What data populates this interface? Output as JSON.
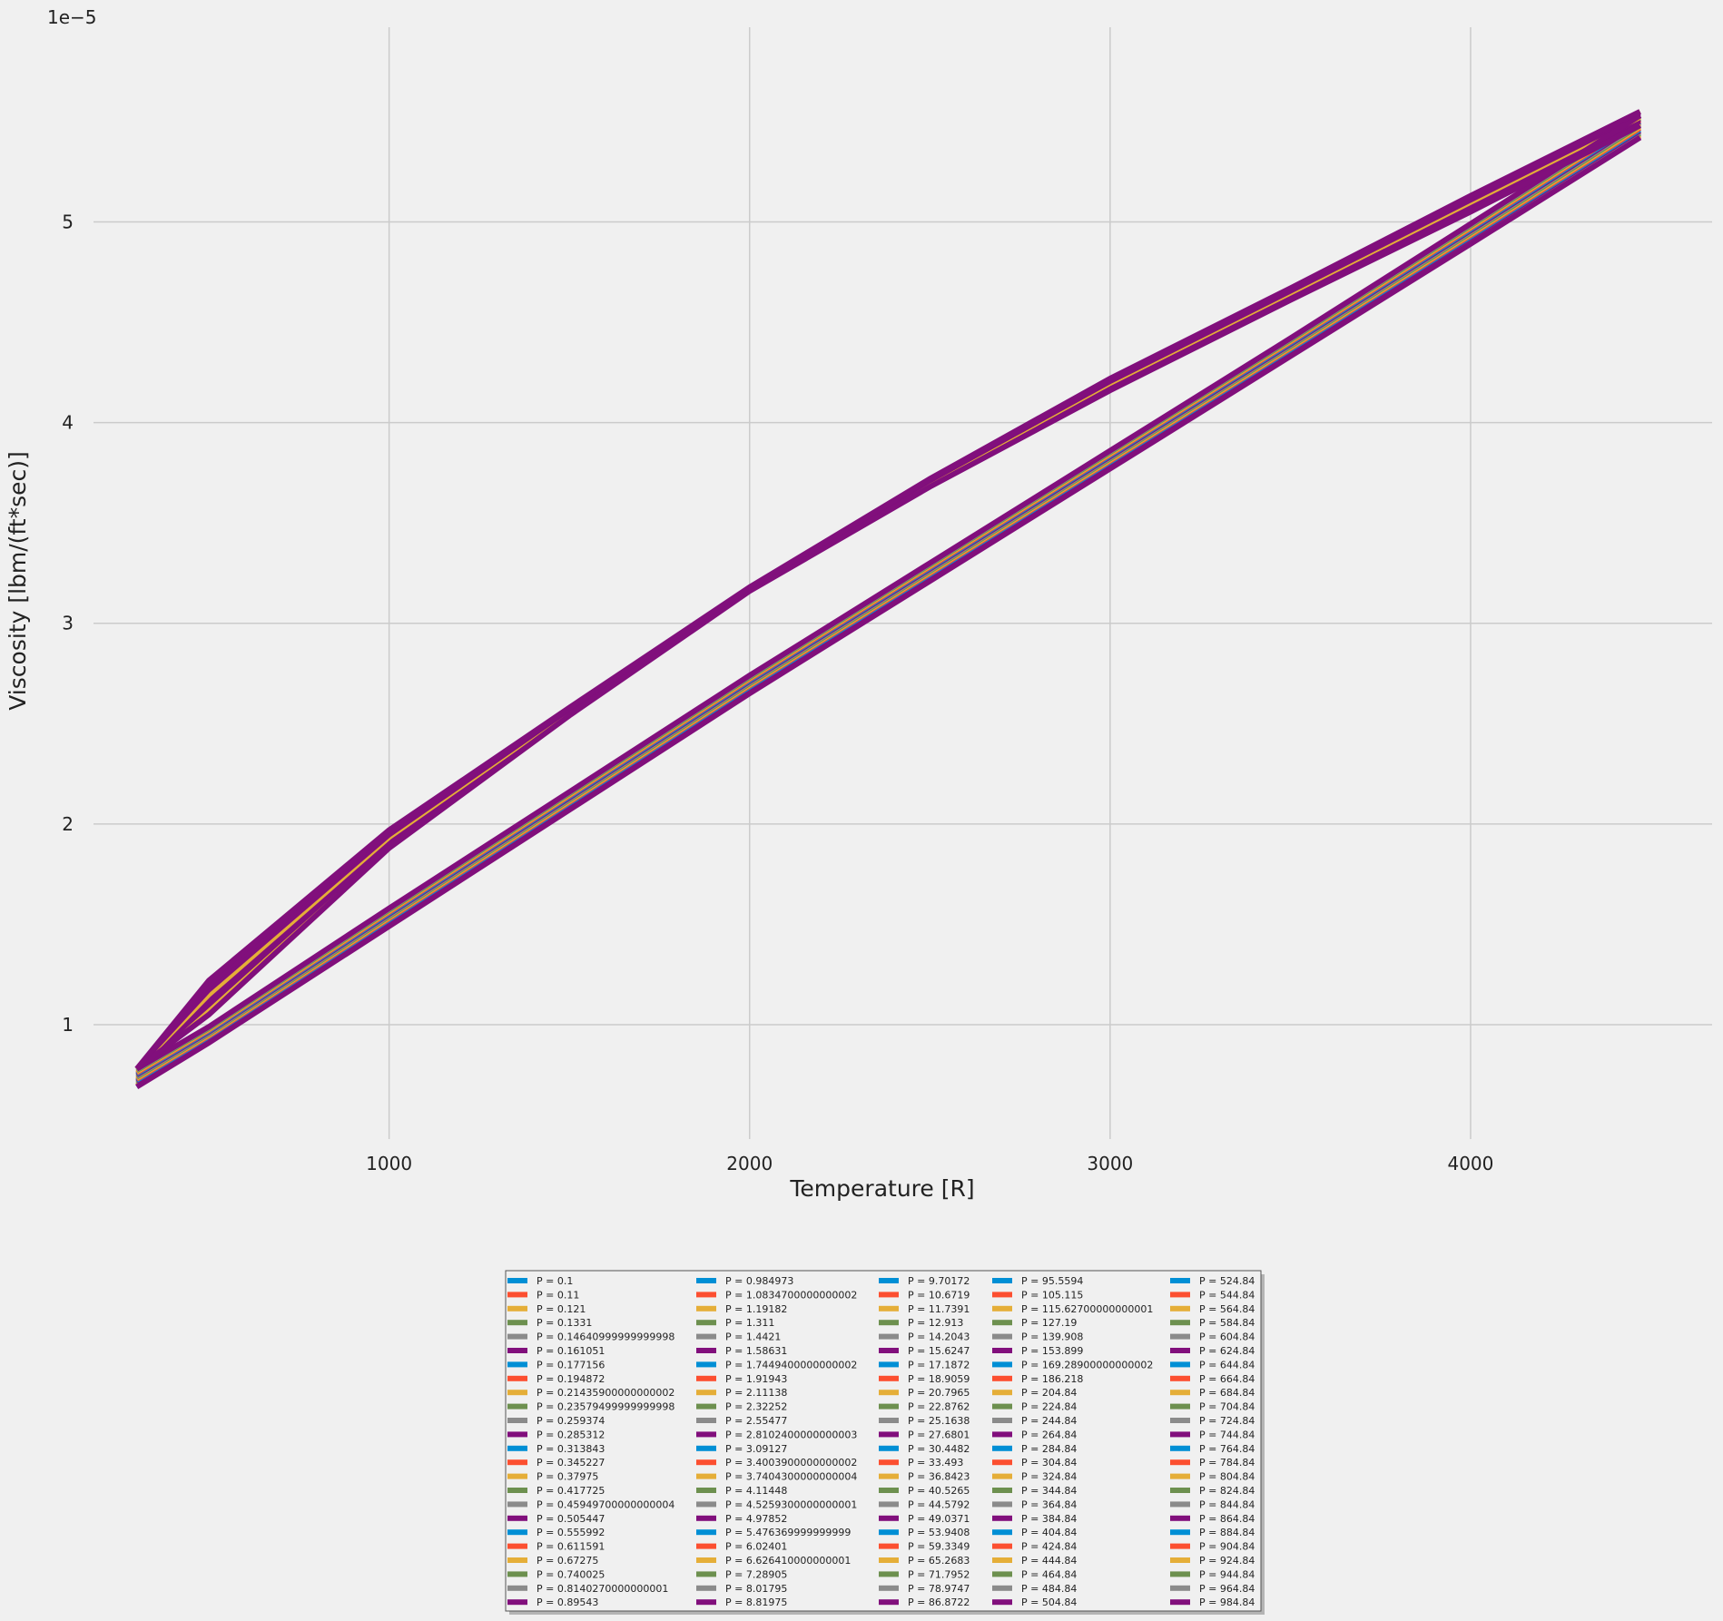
{
  "chart_data": {
    "type": "line",
    "xlabel": "Temperature [R]",
    "ylabel": "Viscosity [lbm/(ft*sec)]",
    "y_offset_label": "1e−5",
    "xlim": [
      180,
      4670
    ],
    "ylim": [
      0.43,
      5.97
    ],
    "x_ticks": [
      1000,
      2000,
      3000,
      4000
    ],
    "x_tick_labels": [
      "1000",
      "2000",
      "3000",
      "4000"
    ],
    "y_ticks": [
      1,
      2,
      3,
      4,
      5
    ],
    "y_tick_labels": [
      "1",
      "2",
      "3",
      "4",
      "5"
    ],
    "grid": true,
    "legend_position": "below plot, center",
    "legend_columns": 5,
    "colors": [
      "#008fd5",
      "#fc4f30",
      "#e5ae38",
      "#6d904f",
      "#8b8b8b",
      "#810f7c"
    ],
    "note_y_units": "y values are in units of 1e-5",
    "curve_shape": {
      "x": [
        300,
        500,
        1000,
        1500,
        2000,
        2500,
        3000,
        3500,
        4000,
        4470
      ],
      "high_pressure_upper": [
        0.78,
        1.22,
        1.97,
        2.58,
        3.18,
        3.72,
        4.22,
        4.67,
        5.13,
        5.55
      ],
      "high_pressure_lower": [
        0.78,
        1.05,
        1.88,
        2.54,
        3.16,
        3.68,
        4.16,
        4.61,
        5.05,
        5.48
      ],
      "low_pressure_upper": [
        0.78,
        0.99,
        1.58,
        2.16,
        2.74,
        3.3,
        3.86,
        4.42,
        4.99,
        5.53
      ],
      "low_pressure_lower": [
        0.69,
        0.91,
        1.49,
        2.07,
        2.65,
        3.21,
        3.77,
        4.33,
        4.89,
        5.42
      ]
    },
    "series_names": [
      "P = 0.1",
      "P = 0.11",
      "P = 0.121",
      "P = 0.1331",
      "P = 0.14640999999999998",
      "P = 0.161051",
      "P = 0.177156",
      "P = 0.194872",
      "P = 0.21435900000000002",
      "P = 0.23579499999999998",
      "P = 0.259374",
      "P = 0.285312",
      "P = 0.313843",
      "P = 0.345227",
      "P = 0.37975",
      "P = 0.417725",
      "P = 0.45949700000000004",
      "P = 0.505447",
      "P = 0.555992",
      "P = 0.611591",
      "P = 0.67275",
      "P = 0.740025",
      "P = 0.8140270000000001",
      "P = 0.89543",
      "P = 0.984973",
      "P = 1.0834700000000002",
      "P = 1.19182",
      "P = 1.311",
      "P = 1.4421",
      "P = 1.58631",
      "P = 1.7449400000000002",
      "P = 1.91943",
      "P = 2.11138",
      "P = 2.32252",
      "P = 2.55477",
      "P = 2.8102400000000003",
      "P = 3.09127",
      "P = 3.4003900000000002",
      "P = 3.7404300000000004",
      "P = 4.11448",
      "P = 4.5259300000000001",
      "P = 4.97852",
      "P = 5.476369999999999",
      "P = 6.02401",
      "P = 6.626410000000001",
      "P = 7.28905",
      "P = 8.01795",
      "P = 8.81975",
      "P = 9.70172",
      "P = 10.6719",
      "P = 11.7391",
      "P = 12.913",
      "P = 14.2043",
      "P = 15.6247",
      "P = 17.1872",
      "P = 18.9059",
      "P = 20.7965",
      "P = 22.8762",
      "P = 25.1638",
      "P = 27.6801",
      "P = 30.4482",
      "P = 33.493",
      "P = 36.8423",
      "P = 40.5265",
      "P = 44.5792",
      "P = 49.0371",
      "P = 53.9408",
      "P = 59.3349",
      "P = 65.2683",
      "P = 71.7952",
      "P = 78.9747",
      "P = 86.8722",
      "P = 95.5594",
      "P = 105.115",
      "P = 115.62700000000001",
      "P = 127.19",
      "P = 139.908",
      "P = 153.899",
      "P = 169.28900000000002",
      "P = 186.218",
      "P = 204.84",
      "P = 224.84",
      "P = 244.84",
      "P = 264.84",
      "P = 284.84",
      "P = 304.84",
      "P = 324.84",
      "P = 344.84",
      "P = 364.84",
      "P = 384.84",
      "P = 404.84",
      "P = 424.84",
      "P = 444.84",
      "P = 464.84",
      "P = 484.84",
      "P = 504.84",
      "P = 524.84",
      "P = 544.84",
      "P = 564.84",
      "P = 584.84",
      "P = 604.84",
      "P = 624.84",
      "P = 644.84",
      "P = 664.84",
      "P = 684.84",
      "P = 704.84",
      "P = 724.84",
      "P = 744.84",
      "P = 764.84",
      "P = 784.84",
      "P = 804.84",
      "P = 824.84",
      "P = 844.84",
      "P = 864.84",
      "P = 884.84",
      "P = 904.84",
      "P = 924.84",
      "P = 944.84",
      "P = 964.84",
      "P = 984.84"
    ]
  }
}
